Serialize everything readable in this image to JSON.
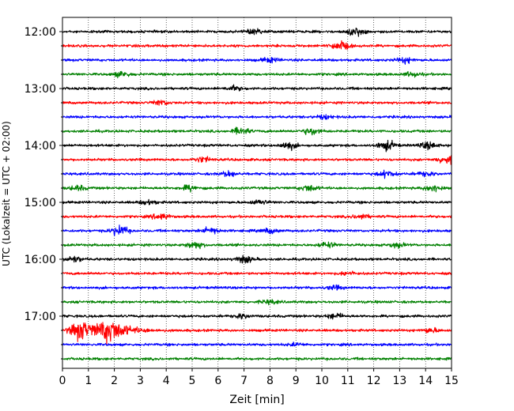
{
  "chart_data": {
    "type": "line",
    "title": "",
    "xlabel": "Zeit  [min]",
    "ylabel": "UTC (Lokalzeit = UTC + 02:00)",
    "xlim": [
      0,
      15
    ],
    "x_ticks": [
      "0",
      "1",
      "2",
      "3",
      "4",
      "5",
      "6",
      "7",
      "8",
      "9",
      "10",
      "11",
      "12",
      "13",
      "14",
      "15"
    ],
    "y_tick_labels": [
      "12:00",
      "13:00",
      "14:00",
      "15:00",
      "16:00",
      "17:00"
    ],
    "line_colors": [
      "#000000",
      "#ff0000",
      "#0000ff",
      "#008000"
    ],
    "trace_minutes": 15,
    "grid": "vertical dotted at each minute",
    "traces": [
      {
        "start": "12:00",
        "color": "#000000",
        "events": [
          {
            "t": 7.4,
            "amp": 0.6
          },
          {
            "t": 11.3,
            "amp": 1.0
          }
        ]
      },
      {
        "start": "12:15",
        "color": "#ff0000",
        "events": [
          {
            "t": 10.7,
            "amp": 1.1
          }
        ]
      },
      {
        "start": "12:30",
        "color": "#0000ff",
        "events": [
          {
            "t": 8.0,
            "amp": 0.5
          },
          {
            "t": 13.2,
            "amp": 0.6
          }
        ]
      },
      {
        "start": "12:45",
        "color": "#008000",
        "events": [
          {
            "t": 2.3,
            "amp": 0.6
          },
          {
            "t": 13.5,
            "amp": 0.5
          }
        ]
      },
      {
        "start": "13:00",
        "color": "#000000",
        "events": [
          {
            "t": 6.6,
            "amp": 0.5
          }
        ]
      },
      {
        "start": "13:15",
        "color": "#ff0000",
        "events": [
          {
            "t": 3.8,
            "amp": 0.6
          }
        ]
      },
      {
        "start": "13:30",
        "color": "#0000ff",
        "events": [
          {
            "t": 10.1,
            "amp": 0.4
          }
        ]
      },
      {
        "start": "13:45",
        "color": "#008000",
        "events": [
          {
            "t": 6.9,
            "amp": 0.8
          },
          {
            "t": 9.6,
            "amp": 0.8
          }
        ]
      },
      {
        "start": "14:00",
        "color": "#000000",
        "events": [
          {
            "t": 8.7,
            "amp": 0.8
          },
          {
            "t": 12.5,
            "amp": 1.1
          },
          {
            "t": 14.1,
            "amp": 0.8
          }
        ]
      },
      {
        "start": "14:15",
        "color": "#ff0000",
        "events": [
          {
            "t": 5.4,
            "amp": 0.6
          },
          {
            "t": 14.8,
            "amp": 0.9
          }
        ]
      },
      {
        "start": "14:30",
        "color": "#0000ff",
        "events": [
          {
            "t": 6.4,
            "amp": 0.6
          },
          {
            "t": 12.5,
            "amp": 0.7
          },
          {
            "t": 14.0,
            "amp": 0.5
          }
        ]
      },
      {
        "start": "14:45",
        "color": "#008000",
        "events": [
          {
            "t": 0.6,
            "amp": 0.5
          },
          {
            "t": 4.9,
            "amp": 0.6
          },
          {
            "t": 9.5,
            "amp": 0.7
          },
          {
            "t": 14.3,
            "amp": 0.8
          }
        ]
      },
      {
        "start": "15:00",
        "color": "#000000",
        "events": [
          {
            "t": 3.3,
            "amp": 0.5
          },
          {
            "t": 7.6,
            "amp": 0.5
          }
        ]
      },
      {
        "start": "15:15",
        "color": "#ff0000",
        "events": [
          {
            "t": 3.8,
            "amp": 0.7
          },
          {
            "t": 11.5,
            "amp": 0.5
          }
        ]
      },
      {
        "start": "15:30",
        "color": "#0000ff",
        "events": [
          {
            "t": 2.2,
            "amp": 1.2
          },
          {
            "t": 5.7,
            "amp": 0.7
          },
          {
            "t": 8.0,
            "amp": 0.5
          }
        ]
      },
      {
        "start": "15:45",
        "color": "#008000",
        "events": [
          {
            "t": 5.1,
            "amp": 0.8
          },
          {
            "t": 10.2,
            "amp": 0.6
          },
          {
            "t": 12.9,
            "amp": 0.5
          }
        ]
      },
      {
        "start": "16:00",
        "color": "#000000",
        "events": [
          {
            "t": 0.4,
            "amp": 0.7
          },
          {
            "t": 7.0,
            "amp": 0.8
          }
        ]
      },
      {
        "start": "16:15",
        "color": "#ff0000",
        "events": [
          {
            "t": 11.0,
            "amp": 0.4
          }
        ]
      },
      {
        "start": "16:30",
        "color": "#0000ff",
        "events": [
          {
            "t": 10.5,
            "amp": 0.4
          }
        ]
      },
      {
        "start": "16:45",
        "color": "#008000",
        "events": [
          {
            "t": 8.0,
            "amp": 0.4
          }
        ]
      },
      {
        "start": "17:00",
        "color": "#000000",
        "events": [
          {
            "t": 6.9,
            "amp": 0.5
          },
          {
            "t": 10.5,
            "amp": 0.6
          }
        ]
      },
      {
        "start": "17:15",
        "color": "#ff0000",
        "events": [
          {
            "t": 0.7,
            "amp": 2.2
          },
          {
            "t": 1.8,
            "amp": 2.5
          },
          {
            "t": 14.2,
            "amp": 0.5
          }
        ]
      },
      {
        "start": "17:30",
        "color": "#0000ff",
        "events": [
          {
            "t": 9.0,
            "amp": 0.3
          }
        ]
      },
      {
        "start": "17:45",
        "color": "#008000",
        "events": []
      }
    ]
  }
}
